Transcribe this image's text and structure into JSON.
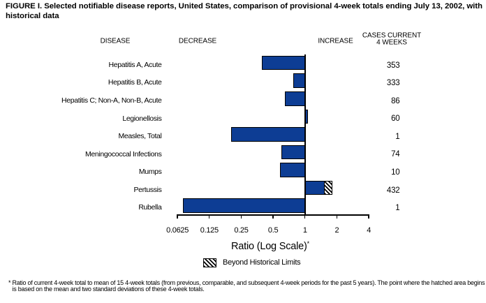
{
  "title": "FIGURE I. Selected notifiable disease reports, United States, comparison of provisional 4-week totals ending July 13, 2002, with historical data",
  "column_headers": {
    "disease": "DISEASE",
    "decrease": "DECREASE",
    "increase": "INCREASE",
    "cases_line1": "CASES CURRENT",
    "cases_line2": "4 WEEKS"
  },
  "colors": {
    "bar_fill": "#0d3d94",
    "outline": "#000000",
    "background": "#ffffff"
  },
  "chart_data": {
    "type": "bar",
    "orientation": "horizontal",
    "x_scale": "log2",
    "title": "FIGURE I. Selected notifiable disease reports, United States, comparison of provisional 4-week totals ending July 13, 2002, with historical data",
    "xlabel": "Ratio (Log Scale)*",
    "xlim": [
      0.0625,
      4
    ],
    "xtick_values": [
      0.0625,
      0.125,
      0.25,
      0.5,
      1,
      2,
      4
    ],
    "xtick_labels": [
      "0.0625",
      "0.125",
      "0.25",
      "0.5",
      "1",
      "2",
      "4"
    ],
    "baseline_ratio": 1,
    "categories": [
      "Hepatitis A, Acute",
      "Hepatitis B, Acute",
      "Hepatitis C; Non-A, Non-B, Acute",
      "Legionellosis",
      "Measles, Total",
      "Meningococcal Infections",
      "Mumps",
      "Pertussis",
      "Rubella"
    ],
    "values": [
      0.39,
      0.78,
      0.65,
      1.04,
      0.2,
      0.6,
      0.58,
      1.82,
      0.07
    ],
    "cases_current_4_weeks": [
      "353",
      "333",
      "86",
      "60",
      "1",
      "74",
      "10",
      "432",
      "1"
    ],
    "rows": [
      {
        "disease": "Hepatitis A, Acute",
        "cases": "353",
        "ratio": 0.39
      },
      {
        "disease": "Hepatitis B, Acute",
        "cases": "333",
        "ratio": 0.78
      },
      {
        "disease": "Hepatitis C; Non-A, Non-B, Acute",
        "cases": "86",
        "ratio": 0.65
      },
      {
        "disease": "Legionellosis",
        "cases": "60",
        "ratio": 1.04
      },
      {
        "disease": "Measles, Total",
        "cases": "1",
        "ratio": 0.2
      },
      {
        "disease": "Meningococcal Infections",
        "cases": "74",
        "ratio": 0.6
      },
      {
        "disease": "Mumps",
        "cases": "10",
        "ratio": 0.58
      },
      {
        "disease": "Pertussis",
        "cases": "432",
        "ratio": 1.82,
        "beyond_historical_limits": true,
        "hatch_start_ratio": 1.5
      },
      {
        "disease": "Rubella",
        "cases": "1",
        "ratio": 0.07
      }
    ],
    "legend": [
      {
        "label": "Beyond Historical Limits",
        "style": "hatched"
      }
    ]
  },
  "axis": {
    "label_text": "Ratio (Log Scale)",
    "label_superscript": "*"
  },
  "legend": {
    "label": "Beyond Historical Limits"
  },
  "footnote": {
    "marker": "*",
    "text": "Ratio of current 4-week total to mean of 15 4-week totals (from previous, comparable, and subsequent 4-week periods for the past 5 years). The point where the hatched area begins is based on the mean and two standard deviations of these 4-week totals."
  }
}
